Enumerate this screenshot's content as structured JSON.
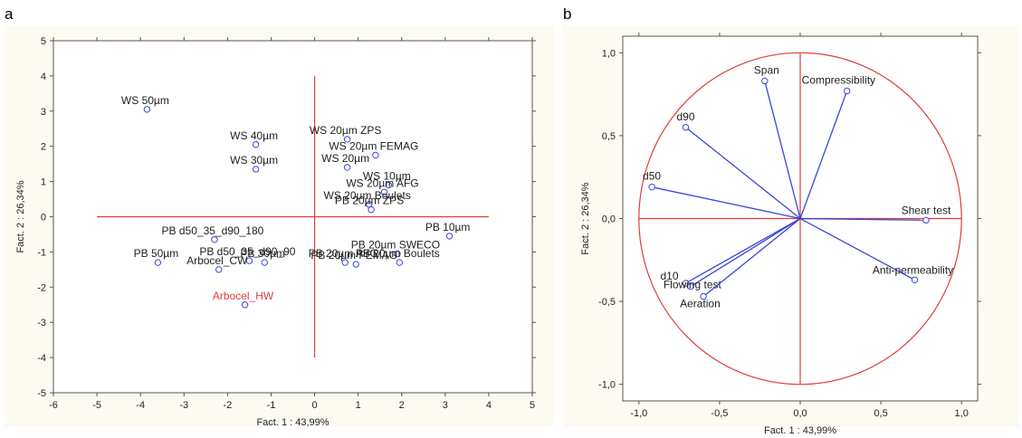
{
  "panels": {
    "a": "a",
    "b": "b"
  },
  "chart_data": [
    {
      "type": "scatter",
      "title": "",
      "xlabel": "Fact. 1 : 43,99%",
      "ylabel": "Fact. 2 : 26,34%",
      "xlim": [
        -6,
        5
      ],
      "ylim": [
        -5,
        5
      ],
      "xticks": [
        "-6",
        "-5",
        "-4",
        "-3",
        "-2",
        "-1",
        "0",
        "1",
        "2",
        "3",
        "4",
        "5"
      ],
      "yticks": [
        "-5",
        "-4",
        "-3",
        "-2",
        "-1",
        "0",
        "1",
        "2",
        "3",
        "4",
        "5"
      ],
      "points": [
        {
          "label": "WS 50µm",
          "x": -3.85,
          "y": 3.05
        },
        {
          "label": "WS 40µm",
          "x": -1.35,
          "y": 2.05
        },
        {
          "label": "WS 30µm",
          "x": -1.35,
          "y": 1.35
        },
        {
          "label": "WS 20µm ZPS",
          "x": 0.75,
          "y": 2.2
        },
        {
          "label": "WS 20µm FEMAG",
          "x": 1.4,
          "y": 1.75
        },
        {
          "label": "WS 20µm",
          "x": 0.75,
          "y": 1.4
        },
        {
          "label": "WS 10µm",
          "x": 1.7,
          "y": 0.9
        },
        {
          "label": "WS 20µm AFG",
          "x": 1.6,
          "y": 0.7
        },
        {
          "label": "WS 20µm Boulets",
          "x": 1.25,
          "y": 0.35
        },
        {
          "label": "PB 20µm ZPS",
          "x": 1.3,
          "y": 0.2
        },
        {
          "label": "PB 10µm",
          "x": 3.1,
          "y": -0.55
        },
        {
          "label": "PB d50_35_d90_180",
          "x": -2.3,
          "y": -0.65
        },
        {
          "label": "PB 50µm",
          "x": -3.6,
          "y": -1.3
        },
        {
          "label": "PB 30µm",
          "x": -1.15,
          "y": -1.3
        },
        {
          "label": "PB d50_35_d90_90",
          "x": -1.5,
          "y": -1.25
        },
        {
          "label": "Arbocel_CW",
          "x": -2.2,
          "y": -1.5
        },
        {
          "label": "PB 20µm SWECO",
          "x": 1.9,
          "y": -1.05
        },
        {
          "label": "PB 20µm AFG",
          "x": 0.7,
          "y": -1.3
        },
        {
          "label": "PB 20µm FEMAG",
          "x": 0.95,
          "y": -1.35
        },
        {
          "label": "PB 20µm Boulets",
          "x": 1.95,
          "y": -1.3
        },
        {
          "label": "Arbocel_HW",
          "x": -1.6,
          "y": -2.5,
          "highlight": true
        }
      ]
    },
    {
      "type": "scatter",
      "title": "",
      "xlabel": "Fact. 1 : 43,99%",
      "ylabel": "Fact. 2 : 26,34%",
      "xlim": [
        -1.1,
        1.1
      ],
      "ylim": [
        -1.1,
        1.1
      ],
      "xticks": [
        "-1,0",
        "-0,5",
        "0,0",
        "0,5",
        "1,0"
      ],
      "yticks": [
        "-1,0",
        "-0,5",
        "0,0",
        "0,5",
        "1,0"
      ],
      "unit_circle": true,
      "vectors": [
        {
          "label": "Span",
          "x": -0.22,
          "y": 0.83
        },
        {
          "label": "Compressibility",
          "x": 0.29,
          "y": 0.77
        },
        {
          "label": "d90",
          "x": -0.71,
          "y": 0.55
        },
        {
          "label": "d50",
          "x": -0.92,
          "y": 0.19
        },
        {
          "label": "Shear test",
          "x": 0.78,
          "y": -0.01
        },
        {
          "label": "Anti-permeability",
          "x": 0.71,
          "y": -0.37
        },
        {
          "label": "d10",
          "x": -0.71,
          "y": -0.39
        },
        {
          "label": "Flowing test",
          "x": -0.68,
          "y": -0.41
        },
        {
          "label": "Aeration",
          "x": -0.6,
          "y": -0.47
        }
      ]
    }
  ]
}
